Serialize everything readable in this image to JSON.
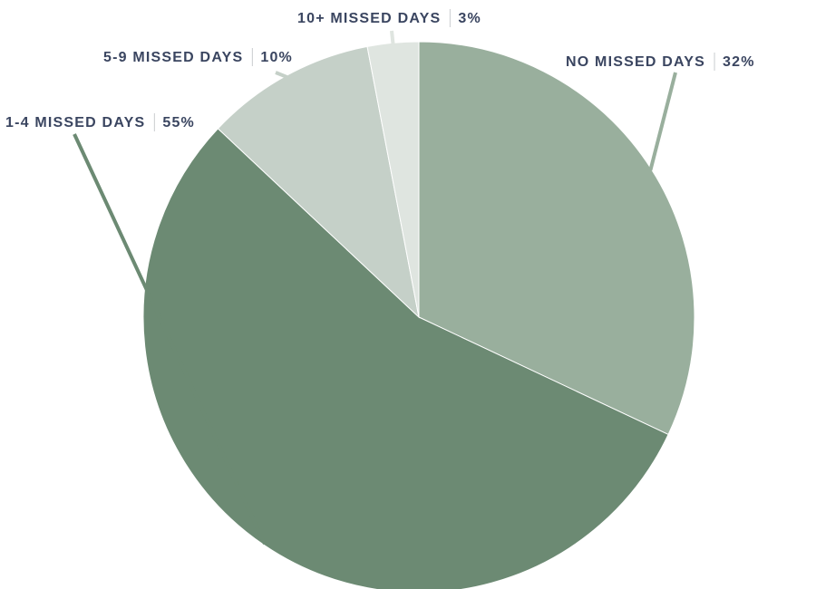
{
  "chart_data": {
    "type": "pie",
    "title": "",
    "start_angle_deg": 0,
    "direction": "clockwise",
    "slices": [
      {
        "label": "NO MISSED DAYS",
        "value": 32,
        "value_label": "32%",
        "color": "#99af9d"
      },
      {
        "label": "1-4 MISSED DAYS",
        "value": 55,
        "value_label": "55%",
        "color": "#6c8a73"
      },
      {
        "label": "5-9 MISSED DAYS",
        "value": 10,
        "value_label": "10%",
        "color": "#c5d0c8"
      },
      {
        "label": "10+ MISSED DAYS",
        "value": 3,
        "value_label": "3%",
        "color": "#dfe5e0"
      }
    ],
    "label_color": "#3a4560"
  }
}
